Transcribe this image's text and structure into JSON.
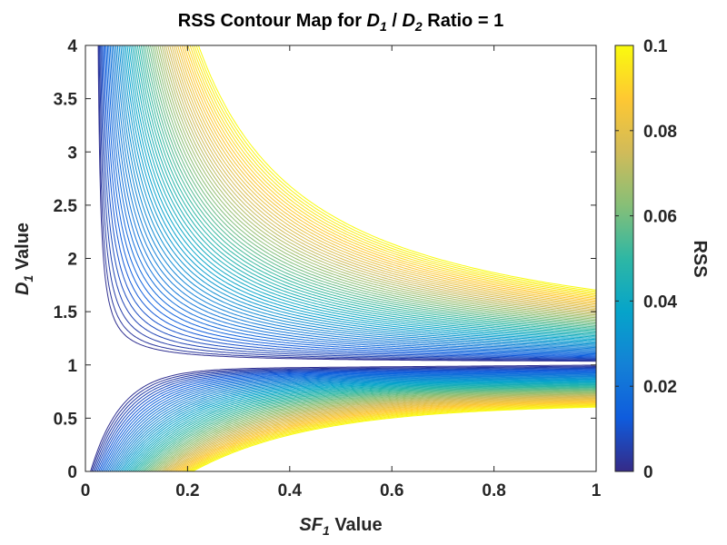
{
  "chart_data": {
    "type": "contour",
    "title": {
      "prefix": "RSS Contour Map for ",
      "var1": "D",
      "var1_sub": "1",
      "slash": " / ",
      "var2": "D",
      "var2_sub": "2",
      "suffix": " Ratio = 1"
    },
    "xlabel": {
      "var": "SF",
      "sub": "1",
      "suffix": " Value"
    },
    "ylabel": {
      "var": "D",
      "sub": "1",
      "suffix": "  Value"
    },
    "xlim": [
      0,
      1
    ],
    "ylim": [
      0,
      4
    ],
    "x_ticks": [
      0,
      0.2,
      0.4,
      0.6,
      0.8,
      1
    ],
    "x_tick_labels": [
      "0",
      "0.2",
      "0.4",
      "0.6",
      "0.8",
      "1"
    ],
    "y_ticks": [
      0,
      0.5,
      1,
      1.5,
      2,
      2.5,
      3,
      3.5,
      4
    ],
    "y_tick_labels": [
      "0",
      "0.5",
      "1",
      "1.5",
      "2",
      "2.5",
      "3",
      "3.5",
      "4"
    ],
    "colorbar": {
      "label": "RSS",
      "range": [
        0,
        0.1
      ],
      "ticks": [
        0,
        0.02,
        0.04,
        0.06,
        0.08,
        0.1
      ],
      "tick_labels": [
        "0",
        "0.02",
        "0.04",
        "0.06",
        "0.08",
        "0.1"
      ],
      "colormap": "parula",
      "colors": [
        "#352a87",
        "#0f5cdd",
        "#1481d6",
        "#06a4ca",
        "#2eb7a4",
        "#87bf77",
        "#d1bb59",
        "#fec832",
        "#f9fb0e"
      ]
    },
    "contour_levels": {
      "count": 60,
      "min": 0.0015,
      "max": 0.1
    }
  }
}
